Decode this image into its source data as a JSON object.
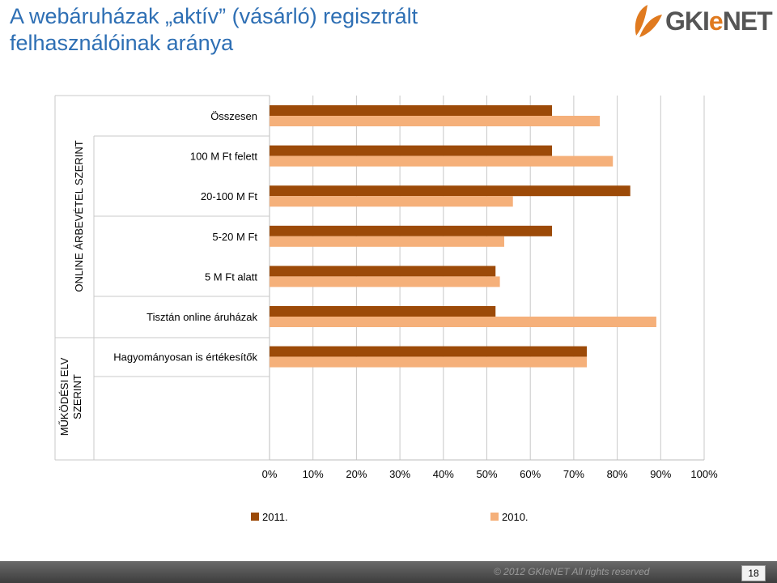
{
  "slide": {
    "title_line1": "A webáruházak „aktív” (vásárló) regisztrált",
    "title_line2": "felhasználóinak aránya",
    "logo_text_left": "GKI",
    "logo_text_accent": "e",
    "logo_text_right": "NET",
    "footer_text": "© 2012 GKIeNET All rights reserved",
    "page_number": "18",
    "colors": {
      "title": "#2e6fb4",
      "series_2011": "#9c4a08",
      "series_2010": "#f5b07a",
      "logo_leaf": "#e07a1f"
    }
  },
  "chart_data": {
    "type": "bar",
    "orientation": "horizontal",
    "categories": [
      "Összesen",
      "100 M Ft felett",
      "20-100 M Ft",
      "5-20 M Ft",
      "5 M Ft alatt",
      "Tisztán online áruházak",
      "Hagyományosan is értékesítők"
    ],
    "group_labels": [
      {
        "label": "ONLINE ÁRBEVÉTEL SZERINT",
        "first_category": 1,
        "last_category": 4
      },
      {
        "label_lines": [
          "MŰKÖDÉSI ELV",
          "SZERINT"
        ],
        "first_category": 5,
        "last_category": 6
      }
    ],
    "series": [
      {
        "name": "2011.",
        "color": "#9c4a08",
        "values": [
          65,
          65,
          83,
          65,
          52,
          52,
          73
        ]
      },
      {
        "name": "2010.",
        "color": "#f5b07a",
        "values": [
          76,
          79,
          56,
          54,
          53,
          89,
          73
        ]
      }
    ],
    "x_ticks": [
      "0%",
      "10%",
      "20%",
      "30%",
      "40%",
      "50%",
      "60%",
      "70%",
      "80%",
      "90%",
      "100%"
    ],
    "xlim": [
      0,
      100
    ],
    "grid": true,
    "legend_position": "bottom"
  }
}
